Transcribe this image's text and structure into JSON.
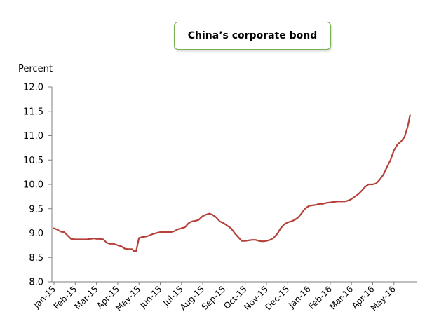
{
  "chart_data": {
    "type": "line",
    "title": "China’s corporate bond",
    "ylabel": "Percent",
    "xlabel": "",
    "ylim": [
      8.0,
      12.0
    ],
    "yticks": [
      "8.0",
      "8.5",
      "9.0",
      "9.5",
      "10.0",
      "10.5",
      "11.0",
      "11.5",
      "12.0"
    ],
    "xticks": [
      "Jan-15",
      "Feb-15",
      "Mar-15",
      "Apr-15",
      "May-15",
      "Jun-15",
      "Jul-15",
      "Aug-15",
      "Sep-15",
      "Oct-15",
      "Nov-15",
      "Dec-15",
      "Jan-16",
      "Feb-16",
      "Mar-16",
      "Apr-16",
      "May-16"
    ],
    "grid": false,
    "line_color": "#b5403a",
    "series": [
      {
        "name": "",
        "x": [
          "2015-01-01",
          "2015-01-06",
          "2015-01-11",
          "2015-01-16",
          "2015-01-21",
          "2015-01-26",
          "2015-02-01",
          "2015-02-06",
          "2015-02-11",
          "2015-02-16",
          "2015-02-21",
          "2015-02-26",
          "2015-03-01",
          "2015-03-06",
          "2015-03-11",
          "2015-03-16",
          "2015-03-21",
          "2015-03-26",
          "2015-04-01",
          "2015-04-06",
          "2015-04-11",
          "2015-04-16",
          "2015-04-21",
          "2015-04-24",
          "2015-04-27",
          "2015-05-01",
          "2015-05-06",
          "2015-05-11",
          "2015-05-16",
          "2015-05-21",
          "2015-05-26",
          "2015-06-01",
          "2015-06-06",
          "2015-06-11",
          "2015-06-16",
          "2015-06-21",
          "2015-06-26",
          "2015-07-01",
          "2015-07-06",
          "2015-07-11",
          "2015-07-16",
          "2015-07-21",
          "2015-07-26",
          "2015-08-01",
          "2015-08-06",
          "2015-08-11",
          "2015-08-16",
          "2015-08-21",
          "2015-08-26",
          "2015-09-01",
          "2015-09-06",
          "2015-09-11",
          "2015-09-16",
          "2015-09-21",
          "2015-09-26",
          "2015-10-01",
          "2015-10-06",
          "2015-10-11",
          "2015-10-16",
          "2015-10-21",
          "2015-10-26",
          "2015-11-01",
          "2015-11-06",
          "2015-11-11",
          "2015-11-16",
          "2015-11-21",
          "2015-11-26",
          "2015-12-01",
          "2015-12-06",
          "2015-12-11",
          "2015-12-16",
          "2015-12-21",
          "2015-12-26",
          "2016-01-01",
          "2016-01-06",
          "2016-01-11",
          "2016-01-16",
          "2016-01-21",
          "2016-01-26",
          "2016-02-01",
          "2016-02-06",
          "2016-02-11",
          "2016-02-16",
          "2016-02-21",
          "2016-02-26",
          "2016-03-01",
          "2016-03-06",
          "2016-03-11",
          "2016-03-16",
          "2016-03-21",
          "2016-03-26",
          "2016-04-01",
          "2016-04-06",
          "2016-04-11",
          "2016-04-16",
          "2016-04-21",
          "2016-04-26",
          "2016-05-01",
          "2016-05-06",
          "2016-05-11",
          "2016-05-16",
          "2016-05-21",
          "2016-05-24"
        ],
        "y": [
          9.1,
          9.07,
          9.03,
          9.02,
          8.95,
          8.88,
          8.87,
          8.87,
          8.87,
          8.87,
          8.88,
          8.89,
          8.88,
          8.88,
          8.87,
          8.8,
          8.78,
          8.78,
          8.75,
          8.73,
          8.68,
          8.67,
          8.67,
          8.63,
          8.63,
          8.9,
          8.92,
          8.93,
          8.95,
          8.98,
          9.0,
          9.02,
          9.02,
          9.02,
          9.02,
          9.04,
          9.08,
          9.1,
          9.12,
          9.2,
          9.24,
          9.25,
          9.27,
          9.35,
          9.38,
          9.4,
          9.37,
          9.32,
          9.24,
          9.2,
          9.15,
          9.1,
          9.0,
          8.92,
          8.84,
          8.84,
          8.85,
          8.86,
          8.86,
          8.84,
          8.83,
          8.84,
          8.86,
          8.9,
          8.98,
          9.1,
          9.18,
          9.22,
          9.24,
          9.27,
          9.32,
          9.4,
          9.5,
          9.56,
          9.57,
          9.58,
          9.6,
          9.6,
          9.62,
          9.63,
          9.64,
          9.65,
          9.65,
          9.65,
          9.67,
          9.7,
          9.75,
          9.8,
          9.87,
          9.95,
          10.0,
          10.0,
          10.02,
          10.1,
          10.2,
          10.35,
          10.5,
          10.7,
          10.82,
          10.88,
          10.97,
          11.2,
          11.42
        ]
      }
    ]
  }
}
